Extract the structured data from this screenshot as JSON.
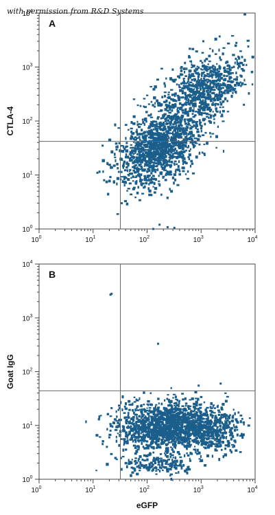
{
  "watermark": "with permission from R&D Systems",
  "chart_data": [
    {
      "type": "scatter",
      "panel": "A",
      "xlabel": "",
      "ylabel": "CTLA-4",
      "xscale": "log",
      "yscale": "log",
      "xlim": [
        1,
        10000
      ],
      "ylim": [
        1,
        10000
      ],
      "xticks": [
        {
          "base": "10",
          "exp": "0"
        },
        {
          "base": "10",
          "exp": "1"
        },
        {
          "base": "10",
          "exp": "2"
        },
        {
          "base": "10",
          "exp": "3"
        },
        {
          "base": "10",
          "exp": "4"
        }
      ],
      "yticks": [
        {
          "base": "10",
          "exp": "0"
        },
        {
          "base": "10",
          "exp": "1"
        },
        {
          "base": "10",
          "exp": "2"
        },
        {
          "base": "10",
          "exp": "3"
        },
        {
          "base": "10",
          "exp": "4"
        }
      ],
      "quadrant_x": 32,
      "quadrant_y": 42,
      "color": "#1b5e8c",
      "grid": false,
      "clusters": [
        {
          "cx": 180,
          "cy": 35,
          "sx": 0.35,
          "sy": 0.3,
          "n": 950,
          "rho": 0.25
        },
        {
          "cx": 700,
          "cy": 250,
          "sx": 0.4,
          "sy": 0.4,
          "n": 650,
          "rho": 0.5
        },
        {
          "cx": 2000,
          "cy": 500,
          "sx": 0.3,
          "sy": 0.3,
          "n": 220,
          "rho": 0.3
        },
        {
          "cx": 90,
          "cy": 12,
          "sx": 0.3,
          "sy": 0.25,
          "n": 180,
          "rho": 0.2
        }
      ],
      "outliers": [
        [
          15,
          35
        ],
        [
          22,
          14
        ],
        [
          27,
          33
        ],
        [
          12,
          11
        ],
        [
          16,
          8
        ],
        [
          34,
          3
        ],
        [
          170,
          1.2
        ],
        [
          320,
          1.05
        ],
        [
          130,
          1.0
        ],
        [
          240,
          1.08
        ],
        [
          600,
          1600
        ],
        [
          1100,
          3000
        ],
        [
          4500,
          2800
        ],
        [
          6200,
          200
        ],
        [
          5000,
          500
        ]
      ]
    },
    {
      "type": "scatter",
      "panel": "B",
      "xlabel": "eGFP",
      "ylabel": "Goat IgG",
      "xscale": "log",
      "yscale": "log",
      "xlim": [
        1,
        10000
      ],
      "ylim": [
        1,
        10000
      ],
      "xticks": [
        {
          "base": "10",
          "exp": "0"
        },
        {
          "base": "10",
          "exp": "1"
        },
        {
          "base": "10",
          "exp": "2"
        },
        {
          "base": "10",
          "exp": "3"
        },
        {
          "base": "10",
          "exp": "4"
        }
      ],
      "yticks": [
        {
          "base": "10",
          "exp": "0"
        },
        {
          "base": "10",
          "exp": "1"
        },
        {
          "base": "10",
          "exp": "2"
        },
        {
          "base": "10",
          "exp": "3"
        },
        {
          "base": "10",
          "exp": "4"
        }
      ],
      "quadrant_x": 32,
      "quadrant_y": 44,
      "color": "#1b5e8c",
      "grid": false,
      "clusters": [
        {
          "cx": 250,
          "cy": 10,
          "sx": 0.45,
          "sy": 0.22,
          "n": 1400,
          "rho": 0.05
        },
        {
          "cx": 1500,
          "cy": 8,
          "sx": 0.3,
          "sy": 0.22,
          "n": 350,
          "rho": 0.0
        },
        {
          "cx": 150,
          "cy": 1.8,
          "sx": 0.35,
          "sy": 0.1,
          "n": 180,
          "rho": 0.0
        }
      ],
      "outliers": [
        [
          22,
          2800
        ],
        [
          21,
          2700
        ],
        [
          160,
          330
        ],
        [
          22,
          21
        ],
        [
          21,
          8
        ],
        [
          20,
          6
        ],
        [
          18,
          4
        ],
        [
          160,
          21
        ],
        [
          280,
          20
        ],
        [
          520,
          20
        ],
        [
          900,
          55
        ],
        [
          2300,
          60
        ],
        [
          1500,
          22
        ],
        [
          4600,
          12
        ],
        [
          3900,
          4
        ]
      ]
    }
  ]
}
